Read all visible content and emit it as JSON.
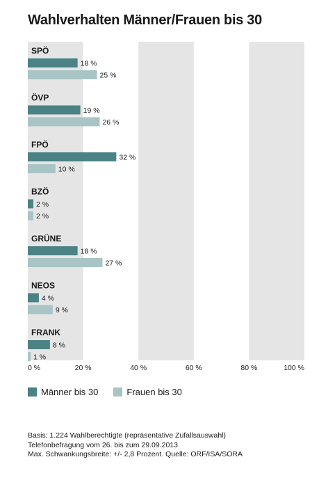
{
  "title": "Wahlverhalten Männer/Frauen bis 30",
  "legend": {
    "men": "Männer bis 30",
    "women": "Frauen bis 30"
  },
  "colors": {
    "men": "#4a8285",
    "women": "#a8c4c5",
    "band": "#e5e5e5"
  },
  "footer": {
    "line1": "Basis: 1.224 Wahlberechtigte (repräsentative Zufallsauswahl)",
    "line2": "Telefonbefragung vom 26. bis zum 29.09.2013",
    "line3": "Max. Schwankungsbreite: +/- 2,8 Prozent. Quelle: ORF/ISA/SORA"
  },
  "chart_data": {
    "type": "bar",
    "orientation": "horizontal",
    "categories": [
      "SPÖ",
      "ÖVP",
      "FPÖ",
      "BZÖ",
      "GRÜNE",
      "NEOS",
      "FRANK"
    ],
    "series": [
      {
        "name": "Männer bis 30",
        "values": [
          18,
          19,
          32,
          2,
          18,
          4,
          8
        ]
      },
      {
        "name": "Frauen bis 30",
        "values": [
          25,
          26,
          10,
          2,
          27,
          9,
          1
        ]
      }
    ],
    "value_labels": {
      "Männer bis 30": [
        "18 %",
        "19 %",
        "32 %",
        "2 %",
        "18 %",
        "4 %",
        "8 %"
      ],
      "Frauen bis 30": [
        "25 %",
        "26 %",
        "10 %",
        "2 %",
        "27 %",
        "9 %",
        "1 %"
      ]
    },
    "xlim": [
      0,
      100
    ],
    "tick_labels": [
      "0 %",
      "20 %",
      "40 %",
      "60 %",
      "80 %",
      "100 %"
    ],
    "grid": "alternating bands",
    "legend_position": "bottom-left"
  }
}
